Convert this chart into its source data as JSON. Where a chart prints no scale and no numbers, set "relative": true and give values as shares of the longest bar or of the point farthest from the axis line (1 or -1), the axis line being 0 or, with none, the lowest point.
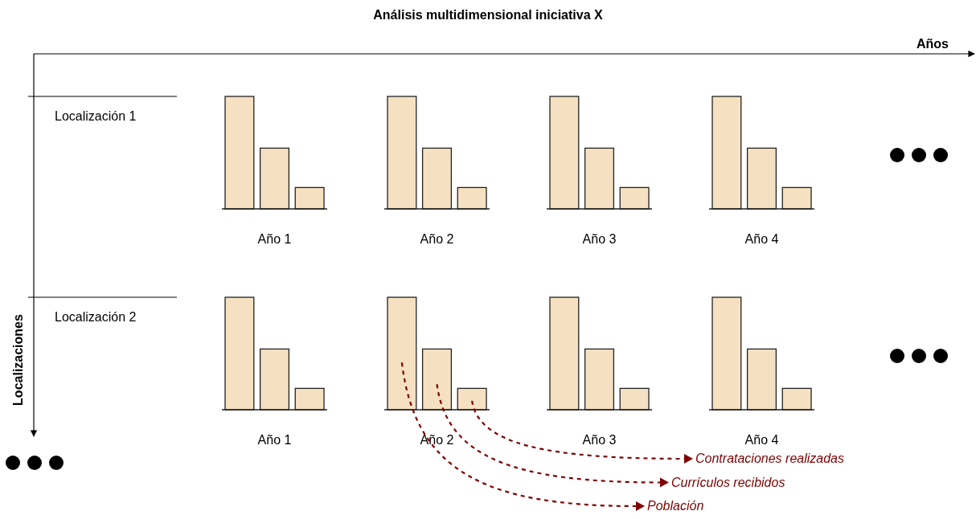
{
  "chart_data": [
    {
      "type": "other",
      "title": "Análisis multidimensional iniciativa X",
      "xlabel": "Años",
      "ylabel": "Localizaciones",
      "annotations": [
        "Localización 1",
        "Localización 2"
      ]
    },
    {
      "type": "bar",
      "relative": true,
      "categories": [
        null,
        null,
        null
      ],
      "values": [
        1,
        0.54,
        0.19
      ],
      "color": "#f5e1c1",
      "xlabel": "Año 1"
    },
    {
      "type": "bar",
      "relative": true,
      "categories": [
        null,
        null,
        null
      ],
      "values": [
        1,
        0.54,
        0.19
      ],
      "color": "#f5e1c1",
      "xlabel": "Año 2"
    },
    {
      "type": "bar",
      "relative": true,
      "categories": [
        null,
        null,
        null
      ],
      "values": [
        1,
        0.54,
        0.19
      ],
      "color": "#f5e1c1",
      "xlabel": "Año 3"
    },
    {
      "type": "bar",
      "relative": true,
      "categories": [
        null,
        null,
        null
      ],
      "values": [
        1,
        0.54,
        0.19
      ],
      "color": "#f5e1c1",
      "xlabel": "Año 4"
    },
    {
      "type": "bar",
      "relative": true,
      "categories": [
        null,
        null,
        null
      ],
      "values": [
        1,
        0.54,
        0.19
      ],
      "color": "#f5e1c1",
      "xlabel": "Año 1"
    },
    {
      "type": "bar",
      "relative": true,
      "categories": [
        null,
        null,
        null
      ],
      "values": [
        1,
        0.54,
        0.19
      ],
      "color": "#f5e1c1",
      "xlabel": "Año 2",
      "annotations": [
        "Población",
        "Currículos recibidos",
        "Contrataciones realizadas"
      ]
    },
    {
      "type": "bar",
      "relative": true,
      "categories": [
        null,
        null,
        null
      ],
      "values": [
        1,
        0.54,
        0.19
      ],
      "color": "#f5e1c1",
      "xlabel": "Año 3"
    },
    {
      "type": "bar",
      "relative": true,
      "categories": [
        null,
        null,
        null
      ],
      "values": [
        1,
        0.54,
        0.19
      ],
      "color": "#f5e1c1",
      "xlabel": "Año 4"
    }
  ]
}
